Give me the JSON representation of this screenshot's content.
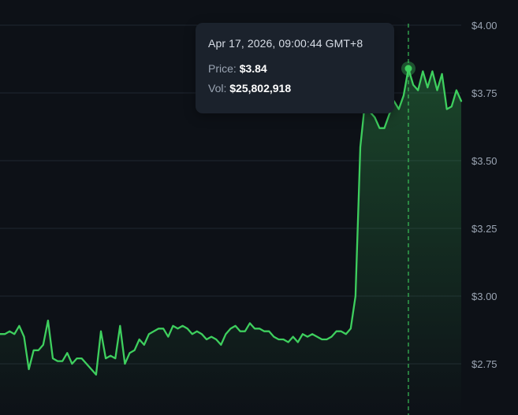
{
  "chart_data": {
    "type": "area",
    "y_ticks": [
      "$4.00",
      "$3.75",
      "$3.50",
      "$3.25",
      "$3.00",
      "$2.75"
    ],
    "y_tick_values": [
      4.0,
      3.75,
      3.5,
      3.25,
      3.0,
      2.75
    ],
    "ylim": [
      2.6,
      4.06
    ],
    "grid": true,
    "line_color": "#3ecf5e",
    "series": [
      {
        "values": [
          2.86,
          2.86,
          2.87,
          2.86,
          2.89,
          2.85,
          2.73,
          2.8,
          2.8,
          2.82,
          2.91,
          2.77,
          2.76,
          2.76,
          2.79,
          2.75,
          2.77,
          2.77,
          2.75,
          2.73,
          2.71,
          2.87,
          2.77,
          2.78,
          2.77,
          2.89,
          2.75,
          2.79,
          2.8,
          2.84,
          2.82,
          2.86,
          2.87,
          2.88,
          2.88,
          2.85,
          2.89,
          2.88,
          2.89,
          2.88,
          2.86,
          2.87,
          2.86,
          2.84,
          2.85,
          2.84,
          2.82,
          2.86,
          2.88,
          2.89,
          2.87,
          2.87,
          2.9,
          2.88,
          2.88,
          2.87,
          2.87,
          2.85,
          2.84,
          2.84,
          2.83,
          2.85,
          2.83,
          2.86,
          2.85,
          2.86,
          2.85,
          2.84,
          2.84,
          2.85,
          2.87,
          2.87,
          2.86,
          2.88,
          3.0,
          3.55,
          3.72,
          3.68,
          3.66,
          3.62,
          3.62,
          3.67,
          3.72,
          3.69,
          3.74,
          3.84,
          3.78,
          3.76,
          3.83,
          3.77,
          3.83,
          3.76,
          3.82,
          3.69,
          3.7,
          3.76,
          3.72
        ]
      }
    ],
    "highlight_index": 85,
    "tooltip": {
      "date": "Apr 17, 2026, 09:00:44 GMT+8",
      "price_label": "Price:",
      "price_value": "$3.84",
      "vol_label": "Vol:",
      "vol_value": "$25,802,918"
    }
  }
}
